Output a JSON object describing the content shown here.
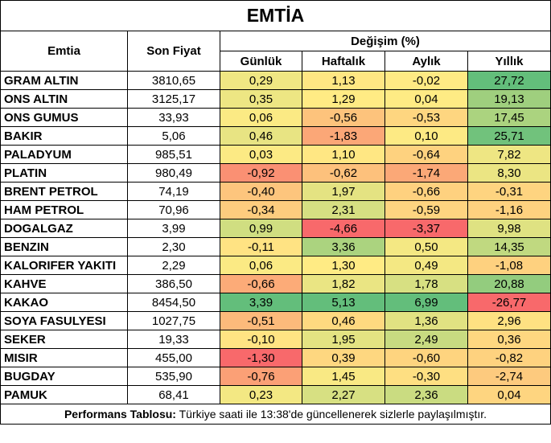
{
  "title": "EMTİA",
  "headers": {
    "commodity": "Emtia",
    "last_price": "Son Fiyat",
    "change": "Değişim (%)",
    "daily": "Günlük",
    "weekly": "Haftalık",
    "monthly": "Aylık",
    "yearly": "Yıllık"
  },
  "rows": [
    {
      "name": "GRAM ALTIN",
      "price": "3810,65",
      "daily": "0,29",
      "weekly": "1,13",
      "monthly": "-0,02",
      "yearly": "27,72"
    },
    {
      "name": "ONS ALTIN",
      "price": "3125,17",
      "daily": "0,35",
      "weekly": "1,29",
      "monthly": "0,04",
      "yearly": "19,13"
    },
    {
      "name": "ONS GUMUS",
      "price": "33,93",
      "daily": "0,06",
      "weekly": "-0,56",
      "monthly": "-0,53",
      "yearly": "17,45"
    },
    {
      "name": "BAKIR",
      "price": "5,06",
      "daily": "0,46",
      "weekly": "-1,83",
      "monthly": "0,10",
      "yearly": "25,71"
    },
    {
      "name": "PALADYUM",
      "price": "985,51",
      "daily": "0,03",
      "weekly": "1,10",
      "monthly": "-0,64",
      "yearly": "7,82"
    },
    {
      "name": "PLATIN",
      "price": "980,49",
      "daily": "-0,92",
      "weekly": "-0,62",
      "monthly": "-1,74",
      "yearly": "8,30"
    },
    {
      "name": "BRENT PETROL",
      "price": "74,19",
      "daily": "-0,40",
      "weekly": "1,97",
      "monthly": "-0,66",
      "yearly": "-0,31"
    },
    {
      "name": "HAM PETROL",
      "price": "70,96",
      "daily": "-0,34",
      "weekly": "2,31",
      "monthly": "-0,59",
      "yearly": "-1,16"
    },
    {
      "name": "DOGALGAZ",
      "price": "3,99",
      "daily": "0,99",
      "weekly": "-4,66",
      "monthly": "-3,37",
      "yearly": "9,98"
    },
    {
      "name": "BENZIN",
      "price": "2,30",
      "daily": "-0,11",
      "weekly": "3,36",
      "monthly": "0,50",
      "yearly": "14,35"
    },
    {
      "name": "KALORIFER YAKITI",
      "price": "2,29",
      "daily": "0,06",
      "weekly": "1,30",
      "monthly": "0,49",
      "yearly": "-1,08"
    },
    {
      "name": "KAHVE",
      "price": "386,50",
      "daily": "-0,66",
      "weekly": "1,82",
      "monthly": "1,78",
      "yearly": "20,88"
    },
    {
      "name": "KAKAO",
      "price": "8454,50",
      "daily": "3,39",
      "weekly": "5,13",
      "monthly": "6,99",
      "yearly": "-26,77"
    },
    {
      "name": "SOYA FASULYESI",
      "price": "1027,75",
      "daily": "-0,51",
      "weekly": "0,46",
      "monthly": "1,36",
      "yearly": "2,96"
    },
    {
      "name": "SEKER",
      "price": "19,33",
      "daily": "-0,10",
      "weekly": "1,95",
      "monthly": "2,49",
      "yearly": "0,36"
    },
    {
      "name": "MISIR",
      "price": "455,00",
      "daily": "-1,30",
      "weekly": "0,39",
      "monthly": "-0,60",
      "yearly": "-0,82"
    },
    {
      "name": "BUGDAY",
      "price": "535,90",
      "daily": "-0,76",
      "weekly": "1,45",
      "monthly": "-0,30",
      "yearly": "-2,74"
    },
    {
      "name": "PAMUK",
      "price": "68,41",
      "daily": "0,23",
      "weekly": "2,27",
      "monthly": "2,36",
      "yearly": "0,04"
    }
  ],
  "color_scale": {
    "low": "#f8696b",
    "mid": "#ffeb84",
    "high": "#63be7b"
  },
  "footer": {
    "label": "Performans Tablosu:",
    "text": " Türkiye saati ile 13:38'de güncellenerek sizlerle paylaşılmıştır."
  }
}
